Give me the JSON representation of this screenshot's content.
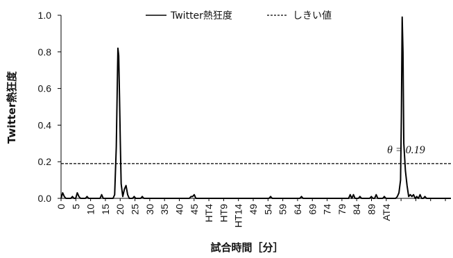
{
  "chart_data": {
    "type": "line",
    "title": "",
    "xlabel": "試合時間［分］",
    "ylabel": "Twitter熱狂度",
    "ylim": [
      0,
      1.0
    ],
    "yticks": [
      "0.0",
      "0.2",
      "0.4",
      "0.6",
      "0.8",
      "1.0"
    ],
    "grid": false,
    "legend_position": "top",
    "x_tick_labels": [
      "0",
      "5",
      "10",
      "15",
      "20",
      "25",
      "30",
      "35",
      "40",
      "45",
      "HT4",
      "HT9",
      "HT14",
      "49",
      "54",
      "59",
      "64",
      "69",
      "74",
      "79",
      "84",
      "89",
      "AT4"
    ],
    "series": [
      {
        "name": "Twitter熱狂度",
        "style": "solid",
        "color": "#000000",
        "points": [
          [
            0,
            0.0
          ],
          [
            1,
            0.03
          ],
          [
            2,
            0.01
          ],
          [
            3,
            0.0
          ],
          [
            4,
            0.0
          ],
          [
            5,
            0.0
          ],
          [
            6,
            0.0
          ],
          [
            7,
            0.01
          ],
          [
            8,
            0.0
          ],
          [
            9,
            0.0
          ],
          [
            10,
            0.03
          ],
          [
            11,
            0.01
          ],
          [
            12,
            0.0
          ],
          [
            13,
            0.0
          ],
          [
            14,
            0.0
          ],
          [
            15,
            0.0
          ],
          [
            16,
            0.01
          ],
          [
            17,
            0.0
          ],
          [
            18,
            0.0
          ],
          [
            19,
            0.0
          ],
          [
            20,
            0.0
          ],
          [
            21,
            0.0
          ],
          [
            22,
            0.0
          ],
          [
            23,
            0.0
          ],
          [
            24,
            0.0
          ],
          [
            25,
            0.02
          ],
          [
            26,
            0.0
          ],
          [
            27,
            0.0
          ],
          [
            28,
            0.0
          ],
          [
            29,
            0.0
          ],
          [
            30,
            0.0
          ],
          [
            31,
            0.0
          ],
          [
            32,
            0.0
          ],
          [
            33,
            0.02
          ],
          [
            34,
            0.28
          ],
          [
            34.5,
            0.55
          ],
          [
            35,
            0.82
          ],
          [
            35.5,
            0.78
          ],
          [
            36,
            0.55
          ],
          [
            36.5,
            0.3
          ],
          [
            37,
            0.08
          ],
          [
            38,
            0.01
          ],
          [
            39,
            0.05
          ],
          [
            40,
            0.07
          ],
          [
            41,
            0.02
          ],
          [
            42,
            0.0
          ],
          [
            43,
            0.0
          ],
          [
            44,
            0.0
          ],
          [
            45,
            0.01
          ],
          [
            46,
            0.0
          ],
          [
            47,
            0.0
          ],
          [
            48,
            0.0
          ],
          [
            49,
            0.0
          ],
          [
            50,
            0.01
          ],
          [
            51,
            0.0
          ],
          [
            52,
            0.0
          ],
          [
            53,
            0.0
          ],
          [
            54,
            0.0
          ],
          [
            55,
            0.0
          ],
          [
            56,
            0.0
          ],
          [
            57,
            0.0
          ],
          [
            58,
            0.0
          ],
          [
            59,
            0.0
          ],
          [
            60,
            0.0
          ],
          [
            61,
            0.0
          ],
          [
            62,
            0.0
          ],
          [
            63,
            0.0
          ],
          [
            64,
            0.0
          ],
          [
            65,
            0.0
          ],
          [
            66,
            0.0
          ],
          [
            67,
            0.0
          ],
          [
            68,
            0.0
          ],
          [
            69,
            0.0
          ],
          [
            70,
            0.0
          ],
          [
            71,
            0.0
          ],
          [
            72,
            0.0
          ],
          [
            73,
            0.0
          ],
          [
            74,
            0.0
          ],
          [
            75,
            0.0
          ],
          [
            76,
            0.0
          ],
          [
            77,
            0.0
          ],
          [
            78,
            0.0
          ],
          [
            79,
            0.0
          ],
          [
            80,
            0.01
          ],
          [
            81,
            0.01
          ],
          [
            82,
            0.02
          ],
          [
            83,
            0.0
          ],
          [
            84,
            0.0
          ],
          [
            85,
            0.0
          ],
          [
            86,
            0.0
          ],
          [
            87,
            0.0
          ],
          [
            88,
            0.0
          ],
          [
            89,
            0.0
          ],
          [
            90,
            0.0
          ],
          [
            91,
            0.0
          ],
          [
            92,
            0.0
          ],
          [
            93,
            0.0
          ],
          [
            94,
            0.0
          ],
          [
            95,
            0.0
          ],
          [
            96,
            0.0
          ],
          [
            97,
            0.0
          ],
          [
            98,
            0.0
          ],
          [
            99,
            0.0
          ],
          [
            100,
            0.0
          ],
          [
            101,
            0.0
          ],
          [
            102,
            0.0
          ],
          [
            103,
            0.0
          ],
          [
            104,
            0.0
          ],
          [
            105,
            0.0
          ],
          [
            106,
            0.0
          ],
          [
            107,
            0.0
          ],
          [
            108,
            0.0
          ],
          [
            109,
            0.0
          ],
          [
            110,
            0.0
          ],
          [
            111,
            0.0
          ],
          [
            112,
            0.0
          ],
          [
            113,
            0.0
          ],
          [
            114,
            0.0
          ],
          [
            115,
            0.0
          ],
          [
            116,
            0.0
          ],
          [
            117,
            0.0
          ],
          [
            118,
            0.0
          ],
          [
            119,
            0.0
          ],
          [
            120,
            0.0
          ],
          [
            121,
            0.0
          ],
          [
            122,
            0.0
          ],
          [
            123,
            0.0
          ],
          [
            124,
            0.0
          ],
          [
            125,
            0.0
          ],
          [
            126,
            0.0
          ],
          [
            127,
            0.0
          ],
          [
            128,
            0.0
          ],
          [
            129,
            0.01
          ],
          [
            130,
            0.0
          ],
          [
            131,
            0.0
          ],
          [
            132,
            0.0
          ],
          [
            133,
            0.0
          ],
          [
            134,
            0.0
          ],
          [
            135,
            0.0
          ],
          [
            136,
            0.0
          ],
          [
            137,
            0.0
          ],
          [
            138,
            0.0
          ],
          [
            139,
            0.0
          ],
          [
            140,
            0.0
          ],
          [
            141,
            0.0
          ],
          [
            142,
            0.0
          ],
          [
            143,
            0.0
          ],
          [
            144,
            0.0
          ],
          [
            145,
            0.0
          ],
          [
            146,
            0.0
          ],
          [
            147,
            0.0
          ],
          [
            148,
            0.01
          ],
          [
            149,
            0.0
          ],
          [
            150,
            0.0
          ],
          [
            151,
            0.0
          ],
          [
            152,
            0.0
          ],
          [
            153,
            0.0
          ],
          [
            154,
            0.0
          ],
          [
            155,
            0.0
          ],
          [
            156,
            0.0
          ],
          [
            157,
            0.0
          ],
          [
            158,
            0.0
          ],
          [
            159,
            0.0
          ],
          [
            160,
            0.0
          ],
          [
            161,
            0.0
          ],
          [
            162,
            0.0
          ],
          [
            163,
            0.0
          ],
          [
            164,
            0.0
          ],
          [
            165,
            0.0
          ],
          [
            166,
            0.0
          ],
          [
            167,
            0.0
          ],
          [
            168,
            0.0
          ],
          [
            169,
            0.0
          ],
          [
            170,
            0.0
          ],
          [
            171,
            0.0
          ],
          [
            172,
            0.0
          ],
          [
            173,
            0.0
          ],
          [
            174,
            0.0
          ],
          [
            175,
            0.0
          ],
          [
            176,
            0.0
          ],
          [
            177,
            0.0
          ],
          [
            178,
            0.02
          ],
          [
            179,
            0.0
          ],
          [
            180,
            0.02
          ],
          [
            181,
            0.0
          ],
          [
            182,
            0.0
          ],
          [
            183,
            0.0
          ],
          [
            184,
            0.01
          ],
          [
            185,
            0.0
          ],
          [
            186,
            0.0
          ],
          [
            187,
            0.0
          ],
          [
            188,
            0.0
          ],
          [
            189,
            0.0
          ],
          [
            190,
            0.0
          ],
          [
            191,
            0.01
          ],
          [
            192,
            0.0
          ],
          [
            193,
            0.0
          ],
          [
            194,
            0.02
          ],
          [
            195,
            0.0
          ],
          [
            196,
            0.0
          ],
          [
            197,
            0.0
          ],
          [
            198,
            0.0
          ],
          [
            199,
            0.01
          ],
          [
            200,
            0.0
          ],
          [
            201,
            0.0
          ],
          [
            202,
            0.0
          ],
          [
            203,
            0.0
          ],
          [
            204,
            0.0
          ],
          [
            205,
            0.0
          ],
          [
            206,
            0.0
          ],
          [
            207,
            0.01
          ],
          [
            208,
            0.03
          ],
          [
            209,
            0.1
          ],
          [
            209.5,
            0.45
          ],
          [
            210,
            0.99
          ],
          [
            210.5,
            0.8
          ],
          [
            211,
            0.3
          ],
          [
            212,
            0.15
          ],
          [
            213,
            0.07
          ],
          [
            214,
            0.01
          ],
          [
            215,
            0.02
          ],
          [
            216,
            0.01
          ],
          [
            217,
            0.02
          ],
          [
            218,
            0.0
          ],
          [
            219,
            0.01
          ],
          [
            220,
            0.0
          ],
          [
            221,
            0.02
          ],
          [
            222,
            0.0
          ],
          [
            223,
            0.0
          ],
          [
            224,
            0.01
          ],
          [
            225,
            0.0
          ],
          [
            226,
            0.0
          ],
          [
            227,
            0.0
          ],
          [
            228,
            0.0
          ],
          [
            229,
            0.0
          ],
          [
            230,
            0.0
          ],
          [
            231,
            0.0
          ],
          [
            232,
            0.0
          ],
          [
            233,
            0.0
          ],
          [
            234,
            0.0
          ],
          [
            235,
            0.0
          ],
          [
            236,
            0.0
          ],
          [
            237,
            0.0
          ],
          [
            238,
            0.0
          ],
          [
            239,
            0.0
          ],
          [
            240,
            0.0
          ]
        ]
      },
      {
        "name": "しきい値",
        "style": "dashed",
        "color": "#000000",
        "constant_y": 0.19
      }
    ],
    "annotations": [
      {
        "text": "θ = 0.19",
        "y": 0.19
      }
    ]
  }
}
